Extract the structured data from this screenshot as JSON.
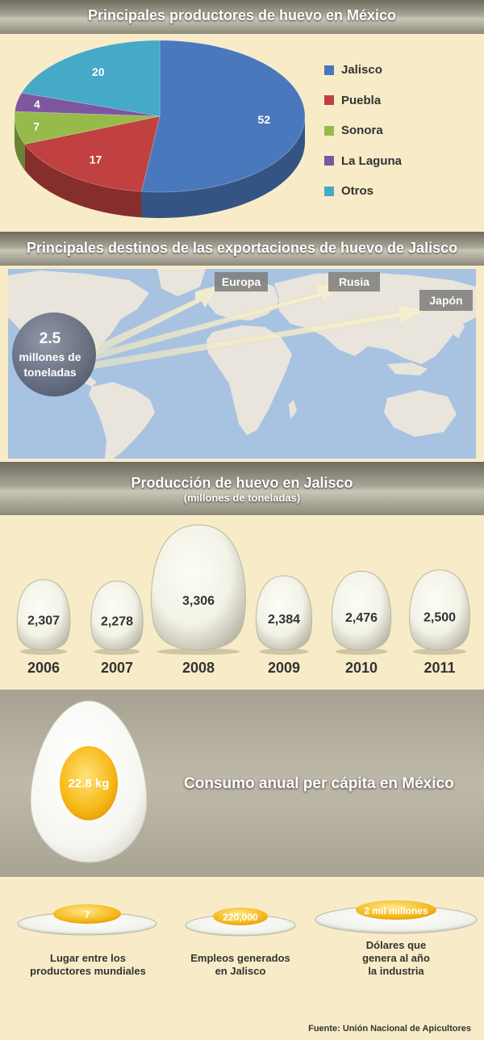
{
  "pie_section": {
    "title": "Principales productores de huevo en México"
  },
  "map_section": {
    "title": "Principales destinos de las exportaciones de huevo de Jalisco",
    "volume_value": "2.5",
    "volume_unit_line1": "millones de",
    "volume_unit_line2": "toneladas",
    "destinations": [
      "Europa",
      "Rusia",
      "Japón"
    ]
  },
  "production_section": {
    "title": "Producción de huevo en Jalisco",
    "subtitle": "(millones de toneladas)"
  },
  "consumo": {
    "value_label": "22.8 kg",
    "label": "Consumo anual per cápita en México"
  },
  "facts": [
    {
      "value": "7",
      "line1": "Lugar entre los",
      "line2": "productores mundiales",
      "line3": ""
    },
    {
      "value": "220,000",
      "line1": "Empleos generados",
      "line2": "en Jalisco",
      "line3": ""
    },
    {
      "value": "2 mil millones",
      "line1": "Dólares que",
      "line2": "genera al año",
      "line3": "la industria"
    }
  ],
  "source": "Fuente: Unión Nacional de Apicultores",
  "chart_data": [
    {
      "type": "pie",
      "title": "Principales productores de huevo en México",
      "categories": [
        "Jalisco",
        "Puebla",
        "Sonora",
        "La Laguna",
        "Otros"
      ],
      "values": [
        52,
        17,
        7,
        4,
        20
      ],
      "colors": [
        "#4a78bd",
        "#c0413f",
        "#97bb4b",
        "#7e56a0",
        "#46a9c8"
      ],
      "legend": "right"
    },
    {
      "type": "bar",
      "title": "Producción de huevo en Jalisco",
      "subtitle": "(millones de toneladas)",
      "categories": [
        "2006",
        "2007",
        "2008",
        "2009",
        "2010",
        "2011"
      ],
      "values": [
        2307,
        2278,
        3306,
        2384,
        2476,
        2500
      ],
      "value_labels": [
        "2,307",
        "2,278",
        "3,306",
        "2,384",
        "2,476",
        "2,500"
      ]
    }
  ]
}
